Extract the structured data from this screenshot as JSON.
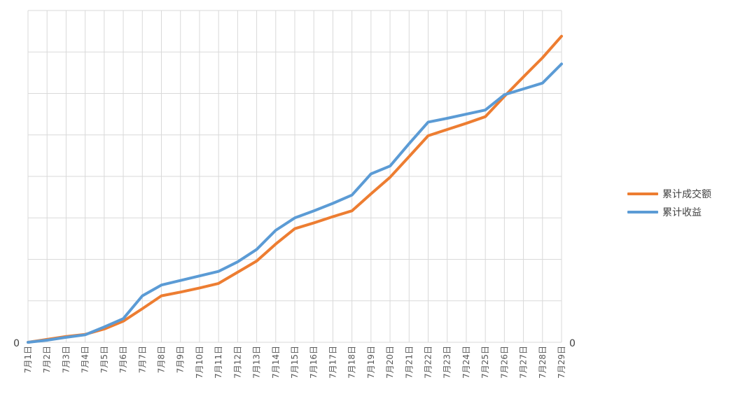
{
  "chart_data": {
    "type": "line",
    "categories": [
      "7月1日",
      "7月2日",
      "7月3日",
      "7月4日",
      "7月5日",
      "7月6日",
      "7月7日",
      "7月8日",
      "7月9日",
      "7月10日",
      "7月11日",
      "7月12日",
      "7月13日",
      "7月14日",
      "7月15日",
      "7月16日",
      "7月17日",
      "7月18日",
      "7月19日",
      "7月20日",
      "7月21日",
      "7月22日",
      "7月23日",
      "7月24日",
      "7月25日",
      "7月26日",
      "7月27日",
      "7月28日",
      "7月29日"
    ],
    "left_axis_label": "0",
    "right_axis_label": "0",
    "ylim": [
      0,
      80
    ],
    "gridlines": true,
    "legend_position": "right",
    "series": [
      {
        "name": "累计成交额",
        "color": "#ED7D31",
        "values": [
          0,
          0.7,
          1.4,
          1.9,
          3.2,
          5.1,
          8.1,
          11.2,
          12.1,
          13.1,
          14.2,
          16.9,
          19.6,
          23.7,
          27.4,
          28.8,
          30.3,
          31.7,
          35.8,
          39.8,
          44.8,
          49.8,
          51.3,
          52.8,
          54.4,
          59.3,
          64.0,
          68.6,
          73.8
        ]
      },
      {
        "name": "累计收益",
        "color": "#5B9BD5",
        "values": [
          0,
          0.5,
          1.2,
          1.8,
          3.7,
          5.7,
          11.2,
          13.8,
          14.9,
          16.0,
          17.1,
          19.4,
          22.4,
          27.0,
          30.0,
          31.7,
          33.5,
          35.5,
          40.6,
          42.5,
          47.9,
          53.1,
          54.0,
          55.0,
          56.0,
          59.7,
          61.1,
          62.5,
          67.1
        ]
      }
    ]
  }
}
